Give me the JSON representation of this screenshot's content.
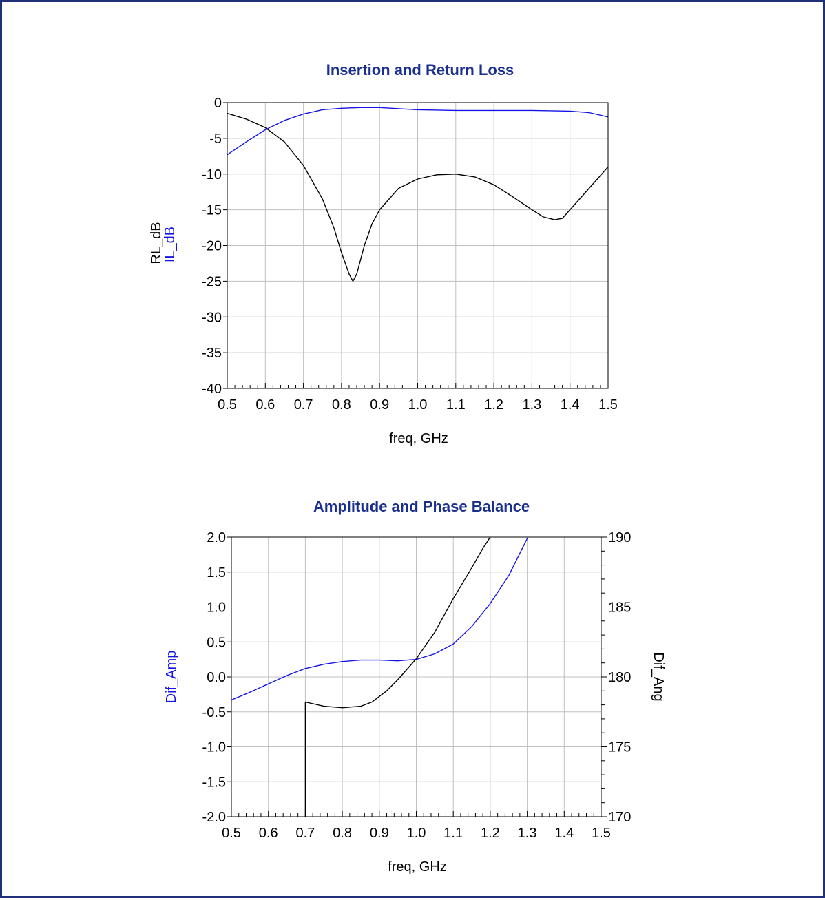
{
  "colors": {
    "frame": "#1f2f78",
    "title": "#1a2f8f",
    "black_series": "#000000",
    "blue_series": "#1414e6",
    "grid": "#c0c0c0"
  },
  "chart_data": [
    {
      "type": "line",
      "title": "Insertion and Return Loss",
      "xlabel": "freq, GHz",
      "ylabels": [
        "RL_dB",
        "IL_dB"
      ],
      "xlim": [
        0.5,
        1.5
      ],
      "ylim": [
        -40,
        0
      ],
      "x_ticks": [
        "0.5",
        "0.6",
        "0.7",
        "0.8",
        "0.9",
        "1.0",
        "1.1",
        "1.2",
        "1.3",
        "1.4",
        "1.5"
      ],
      "y_ticks": [
        "0",
        "-5",
        "-10",
        "-15",
        "-20",
        "-25",
        "-30",
        "-35",
        "-40"
      ],
      "grid": true,
      "series": [
        {
          "name": "RL_dB",
          "color": "#000000",
          "x": [
            0.5,
            0.55,
            0.6,
            0.65,
            0.7,
            0.75,
            0.78,
            0.8,
            0.82,
            0.83,
            0.84,
            0.86,
            0.88,
            0.9,
            0.95,
            1.0,
            1.05,
            1.1,
            1.15,
            1.2,
            1.25,
            1.3,
            1.33,
            1.36,
            1.38,
            1.4,
            1.45,
            1.5
          ],
          "y": [
            -1.5,
            -2.3,
            -3.5,
            -5.5,
            -8.8,
            -13.5,
            -17.5,
            -21,
            -24,
            -25,
            -24,
            -20,
            -17,
            -15,
            -12,
            -10.7,
            -10.1,
            -10,
            -10.4,
            -11.5,
            -13.2,
            -15,
            -16,
            -16.4,
            -16.2,
            -15,
            -12,
            -9
          ]
        },
        {
          "name": "IL_dB",
          "color": "#1414e6",
          "x": [
            0.5,
            0.55,
            0.6,
            0.65,
            0.7,
            0.75,
            0.8,
            0.85,
            0.9,
            1.0,
            1.1,
            1.2,
            1.3,
            1.4,
            1.45,
            1.5
          ],
          "y": [
            -7.3,
            -5.5,
            -3.8,
            -2.5,
            -1.6,
            -1.0,
            -0.8,
            -0.7,
            -0.7,
            -1.0,
            -1.1,
            -1.1,
            -1.1,
            -1.2,
            -1.4,
            -2.0
          ]
        }
      ]
    },
    {
      "type": "line",
      "title": "Amplitude and Phase Balance",
      "xlabel": "freq, GHz",
      "ylabel_left": "Dif_Amp",
      "ylabel_right": "Dif_Ang",
      "xlim": [
        0.5,
        1.5
      ],
      "ylim_left": [
        -2,
        2
      ],
      "ylim_right": [
        170,
        190
      ],
      "x_ticks": [
        "0.5",
        "0.6",
        "0.7",
        "0.8",
        "0.9",
        "1.0",
        "1.1",
        "1.2",
        "1.3",
        "1.4",
        "1.5"
      ],
      "y_ticks_left": [
        "2.0",
        "1.5",
        "1.0",
        "0.5",
        "0.0",
        "-0.5",
        "-1.0",
        "-1.5",
        "-2.0"
      ],
      "y_ticks_right": [
        "190",
        "185",
        "180",
        "175",
        "170"
      ],
      "grid": true,
      "series": [
        {
          "name": "Dif_Amp",
          "axis": "left",
          "color": "#1414e6",
          "x": [
            0.5,
            0.55,
            0.6,
            0.65,
            0.7,
            0.75,
            0.8,
            0.85,
            0.9,
            0.95,
            1.0,
            1.05,
            1.1,
            1.15,
            1.2,
            1.25,
            1.3
          ],
          "y": [
            -0.33,
            -0.22,
            -0.1,
            0.02,
            0.12,
            0.18,
            0.22,
            0.24,
            0.24,
            0.23,
            0.25,
            0.33,
            0.47,
            0.72,
            1.05,
            1.45,
            1.98
          ]
        },
        {
          "name": "Dif_Ang",
          "axis": "right",
          "color": "#000000",
          "x": [
            0.7,
            0.7,
            0.75,
            0.8,
            0.85,
            0.88,
            0.92,
            0.95,
            1.0,
            1.05,
            1.1,
            1.15,
            1.18,
            1.2
          ],
          "y": [
            170,
            178.2,
            177.9,
            177.8,
            177.9,
            178.2,
            179.0,
            179.8,
            181.3,
            183.2,
            185.6,
            187.8,
            189.2,
            190
          ]
        }
      ]
    }
  ]
}
